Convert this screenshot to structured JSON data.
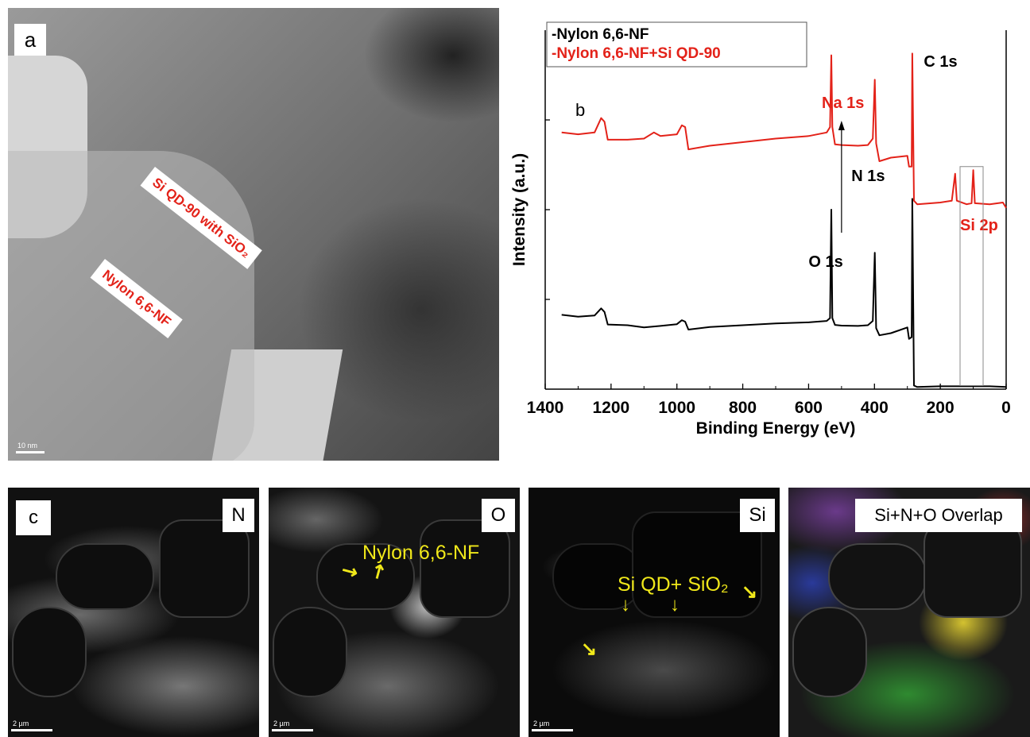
{
  "panel_a": {
    "letter": "a",
    "label_sio2": "Si QD-90 with SiO₂",
    "label_nylon": "Nylon 6,6-NF",
    "scale_bar": "10 nm"
  },
  "panel_b": {
    "letter": "b"
  },
  "chart_data": {
    "type": "line",
    "xlabel": "Binding Energy (eV)",
    "ylabel": "Intensity (a.u.)",
    "xlim": [
      1400,
      0
    ],
    "x_reversed": true,
    "x_ticks": [
      "1400",
      "1200",
      "1000",
      "800",
      "600",
      "400",
      "200",
      "0"
    ],
    "ylim": [
      0,
      100
    ],
    "y_tick_labels_shown": false,
    "legend": [
      "-Nylon 6,6-NF",
      "-Nylon 6,6-NF+Si QD-90"
    ],
    "legend_position": "top-left",
    "annotations": [
      {
        "text": "C 1s",
        "color": "#000000"
      },
      {
        "text": "Na 1s",
        "color": "#e32219"
      },
      {
        "text": "N 1s",
        "color": "#000000"
      },
      {
        "text": "O 1s",
        "color": "#000000"
      },
      {
        "text": "Si 2p",
        "color": "#e32219"
      }
    ],
    "series": [
      {
        "name": "-Nylon 6,6-NF",
        "color": "#000000",
        "x": [
          1350,
          1300,
          1250,
          1230,
          1220,
          1210,
          1150,
          1100,
          1050,
          1000,
          985,
          975,
          965,
          900,
          800,
          700,
          600,
          545,
          535,
          531,
          528,
          520,
          500,
          450,
          420,
          405,
          399,
          395,
          385,
          350,
          300,
          295,
          287,
          285,
          280,
          270,
          200,
          150,
          100,
          50,
          0
        ],
        "y": [
          20.7,
          20.2,
          20.5,
          22.5,
          21.5,
          18.0,
          17.8,
          17.2,
          17.6,
          18.1,
          19.2,
          18.8,
          16.6,
          17.3,
          17.8,
          18.3,
          18.6,
          19.0,
          19.8,
          50.0,
          19.8,
          17.9,
          17.7,
          17.6,
          17.8,
          19.0,
          38.0,
          17.0,
          15.0,
          15.6,
          17.2,
          14.0,
          14.5,
          53.0,
          1.0,
          0.6,
          0.8,
          0.8,
          0.8,
          0.8,
          0.6
        ]
      },
      {
        "name": "-Nylon 6,6-NF+Si QD-90",
        "color": "#e32219",
        "x": [
          1350,
          1300,
          1250,
          1230,
          1220,
          1210,
          1150,
          1100,
          1070,
          1050,
          1000,
          985,
          975,
          965,
          900,
          800,
          700,
          600,
          545,
          535,
          531,
          528,
          520,
          500,
          450,
          420,
          405,
          399,
          395,
          385,
          350,
          300,
          295,
          287,
          285,
          280,
          270,
          200,
          165,
          155,
          150,
          120,
          105,
          100,
          95,
          50,
          10,
          0
        ],
        "y": [
          71.5,
          71.0,
          71.5,
          75.5,
          74.5,
          69.5,
          69.5,
          69.8,
          71.5,
          70.5,
          71.0,
          73.5,
          73.0,
          66.8,
          67.8,
          68.8,
          69.8,
          70.5,
          71.5,
          73.0,
          93.0,
          73.0,
          68.2,
          68.0,
          67.8,
          68.0,
          69.8,
          86.2,
          68.5,
          63.5,
          64.5,
          65.0,
          62.0,
          62.0,
          93.5,
          52.5,
          51.5,
          52.0,
          52.5,
          60.0,
          52.5,
          51.5,
          51.8,
          61.0,
          51.8,
          51.5,
          52.0,
          50.5
        ]
      }
    ]
  },
  "maps": [
    {
      "letter": "c",
      "label": "N",
      "scale_bar": "2 µm"
    },
    {
      "label": "O",
      "scale_bar": "2 µm",
      "note": "Nylon 6,6-NF"
    },
    {
      "label": "Si",
      "scale_bar": "2 µm",
      "note": "Si QD+ SiO₂"
    },
    {
      "label": "Si+N+O Overlap"
    }
  ]
}
